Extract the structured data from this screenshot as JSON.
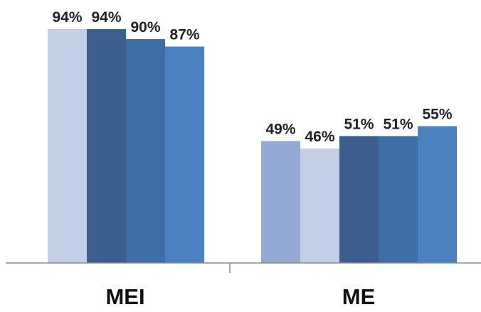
{
  "chart_data": {
    "type": "bar",
    "categories": [
      "MEI",
      "ME"
    ],
    "groups": [
      {
        "category": "MEI",
        "bars": [
          {
            "value": 94,
            "label": "94%",
            "color": "#c3cfe6"
          },
          {
            "value": 94,
            "label": "94%",
            "color": "#3b5e8e"
          },
          {
            "value": 90,
            "label": "90%",
            "color": "#3f6ea6"
          },
          {
            "value": 87,
            "label": "87%",
            "color": "#4b80c1"
          }
        ]
      },
      {
        "category": "ME",
        "bars": [
          {
            "value": 49,
            "label": "49%",
            "color": "#94aad4"
          },
          {
            "value": 46,
            "label": "46%",
            "color": "#c3cfe6"
          },
          {
            "value": 51,
            "label": "51%",
            "color": "#3b5e8e"
          },
          {
            "value": 51,
            "label": "51%",
            "color": "#3f6ea6"
          },
          {
            "value": 55,
            "label": "55%",
            "color": "#4b80c1"
          }
        ]
      }
    ],
    "ylim": [
      0,
      100
    ],
    "grid": false,
    "legend": "none",
    "title": "",
    "xlabel": "",
    "ylabel": ""
  }
}
